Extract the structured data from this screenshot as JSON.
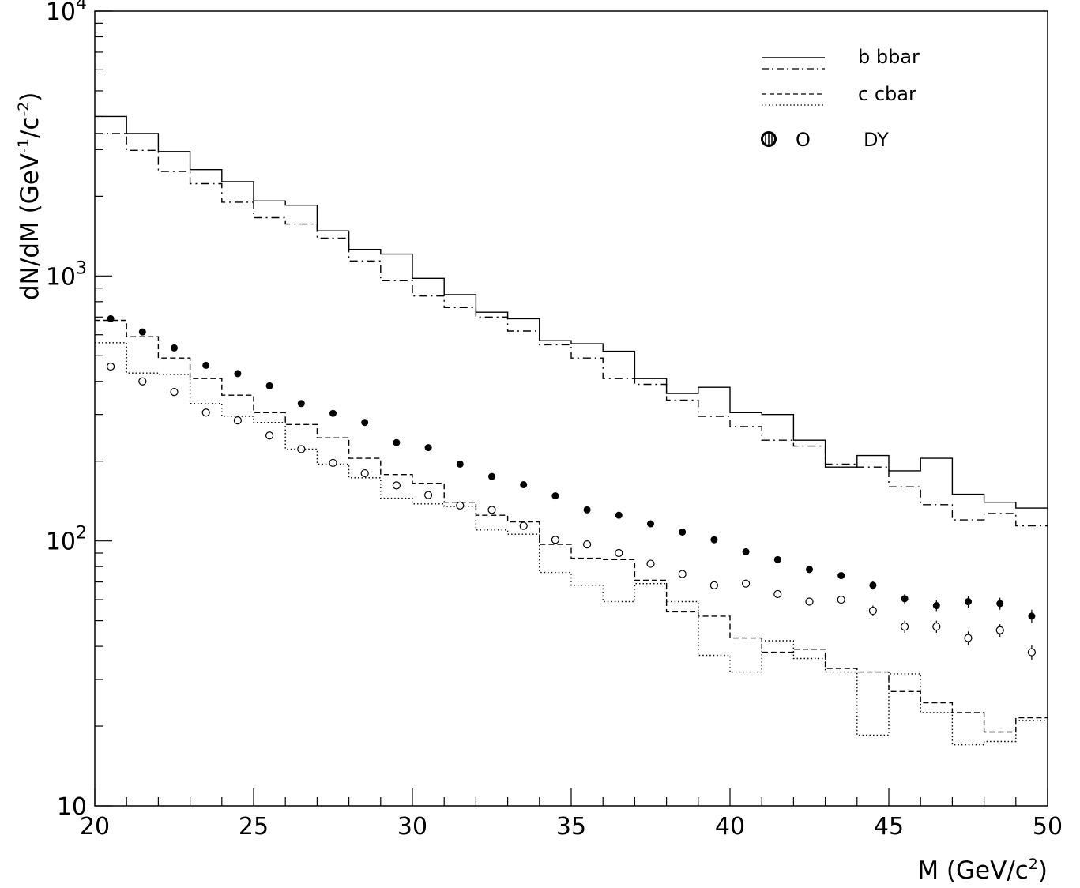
{
  "chart_data": {
    "type": "line",
    "title": "",
    "xlabel": "M  (GeV/c",
    "xlabel_sup": "2",
    "xlabel_end": ")",
    "ylabel": "dN/dM  (GeV",
    "ylabel_sup1": "-1",
    "ylabel_mid": "/c",
    "ylabel_sup2": "-2",
    "ylabel_end": ")",
    "xlim": [
      20,
      50
    ],
    "ylim": [
      10,
      10000
    ],
    "y_scale": "log",
    "grid": false,
    "legend_position": "top-right",
    "x_ticks": [
      20,
      25,
      30,
      35,
      40,
      45,
      50
    ],
    "x_tick_labels": [
      "20",
      "25",
      "30",
      "35",
      "40",
      "45",
      "50"
    ],
    "y_ticks": [
      {
        "base": "10",
        "exp": "4"
      },
      {
        "base": "10",
        "exp": "3"
      },
      {
        "base": "10",
        "exp": "2"
      },
      {
        "base": "10",
        "exp": ""
      }
    ],
    "y_tick_values": [
      10000,
      1000,
      100,
      10
    ],
    "legend": {
      "bb_label": "b bbar",
      "cc_label": "c cbar",
      "dy_open_marker": "O",
      "dy_label": "DY"
    },
    "bin_edges": [
      20,
      21,
      22,
      23,
      24,
      25,
      26,
      27,
      28,
      29,
      30,
      31,
      32,
      33,
      34,
      35,
      36,
      37,
      38,
      39,
      40,
      41,
      42,
      43,
      44,
      45,
      46,
      47,
      48,
      49,
      50
    ],
    "x_centers": [
      20.5,
      21.5,
      22.5,
      23.5,
      24.5,
      25.5,
      26.5,
      27.5,
      28.5,
      29.5,
      30.5,
      31.5,
      32.5,
      33.5,
      34.5,
      35.5,
      36.5,
      37.5,
      38.5,
      39.5,
      40.5,
      41.5,
      42.5,
      43.5,
      44.5,
      45.5,
      46.5,
      47.5,
      48.5,
      49.5
    ],
    "series": [
      {
        "key": "bb_solid",
        "style": "solid",
        "values": [
          4000,
          3450,
          2950,
          2520,
          2270,
          1920,
          1850,
          1480,
          1260,
          1210,
          980,
          850,
          730,
          690,
          570,
          555,
          520,
          410,
          360,
          380,
          305,
          300,
          240,
          190,
          210,
          184,
          205,
          150,
          140,
          133
        ]
      },
      {
        "key": "bb_dashdot",
        "style": "dashdot",
        "values": [
          3450,
          2980,
          2480,
          2230,
          1900,
          1660,
          1570,
          1390,
          1140,
          960,
          840,
          760,
          700,
          620,
          550,
          490,
          410,
          390,
          340,
          295,
          270,
          240,
          228,
          195,
          190,
          160,
          137,
          120,
          127,
          114
        ]
      },
      {
        "key": "cc_dashed",
        "style": "dashed",
        "values": [
          680,
          590,
          490,
          410,
          355,
          305,
          275,
          245,
          205,
          178,
          165,
          140,
          125,
          118,
          97,
          86,
          85,
          71,
          54,
          52,
          43,
          38,
          39,
          33,
          32,
          27,
          24.5,
          22.5,
          19,
          21.5
        ]
      },
      {
        "key": "cc_dotted",
        "style": "dotted",
        "values": [
          560,
          430,
          425,
          330,
          295,
          280,
          222,
          195,
          173,
          145,
          138,
          135,
          110,
          106,
          76,
          68,
          59,
          69,
          59,
          37,
          32,
          42,
          36,
          32,
          18.5,
          31.5,
          22.5,
          17,
          17.5,
          21
        ]
      },
      {
        "key": "dy_filled",
        "marker": "filled",
        "values": [
          690,
          615,
          535,
          460,
          428,
          385,
          330,
          303,
          280,
          235,
          225,
          195,
          175,
          163,
          148,
          131,
          125,
          116,
          108,
          101,
          91,
          85,
          78,
          74,
          68,
          60.5,
          57,
          59,
          58,
          52
        ],
        "errors": [
          0,
          0,
          0,
          0,
          0,
          0,
          0,
          0,
          0,
          0,
          0,
          0,
          0,
          0,
          0,
          0,
          0,
          0,
          0,
          0,
          0,
          2,
          2,
          2,
          2.5,
          2.5,
          3,
          3,
          3,
          3
        ]
      },
      {
        "key": "dy_open",
        "marker": "open",
        "values": [
          455,
          400,
          365,
          305,
          285,
          250,
          222,
          197,
          180,
          162,
          149,
          136,
          131,
          114,
          101,
          97,
          90,
          82,
          75,
          68,
          69,
          63,
          59,
          60,
          54.5,
          47.5,
          47.5,
          43,
          46,
          38
        ],
        "errors": [
          0,
          0,
          0,
          0,
          0,
          0,
          0,
          0,
          0,
          0,
          0,
          0,
          0,
          0,
          0,
          0,
          0,
          0,
          0,
          0,
          0,
          2,
          2,
          2,
          2.5,
          2.5,
          2.5,
          2.5,
          2.5,
          2.5
        ]
      }
    ]
  }
}
